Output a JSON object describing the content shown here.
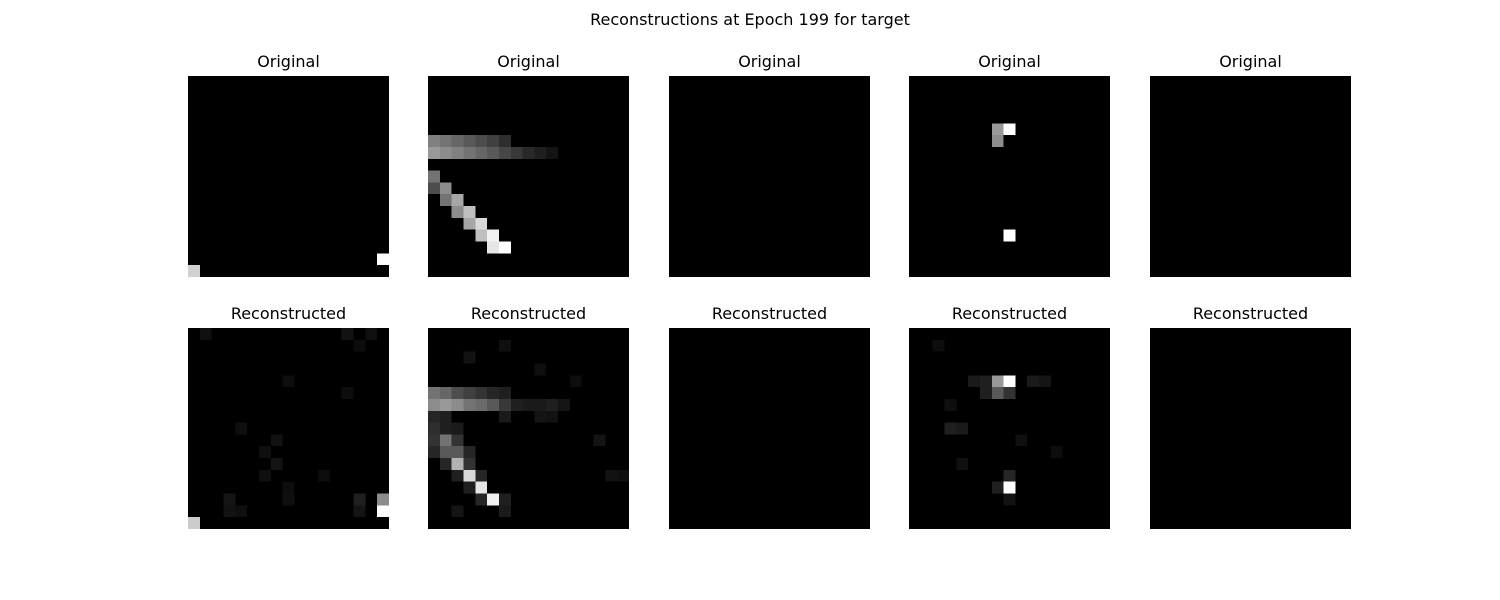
{
  "title": "Reconstructions at Epoch 199 for target",
  "colors": {
    "background": "#ffffff",
    "colormap": "gray"
  },
  "chart_data": {
    "type": "heatmap",
    "title": "Reconstructions at Epoch 199 for target",
    "grid_size": 17,
    "value_range": [
      0,
      1
    ],
    "colormap": "gray",
    "grid": false,
    "axes": "off",
    "rows": [
      {
        "row_title": "Original",
        "panels": [
          {
            "title": "Original",
            "cells": [
              [
                16,
                0,
                0.82
              ],
              [
                15,
                16,
                1.0
              ]
            ]
          },
          {
            "title": "Original",
            "cells": [
              [
                5,
                0,
                0.5
              ],
              [
                5,
                1,
                0.45
              ],
              [
                5,
                2,
                0.4
              ],
              [
                5,
                3,
                0.35
              ],
              [
                5,
                4,
                0.3
              ],
              [
                5,
                5,
                0.25
              ],
              [
                5,
                6,
                0.18
              ],
              [
                6,
                0,
                0.6
              ],
              [
                6,
                1,
                0.55
              ],
              [
                6,
                2,
                0.5
              ],
              [
                6,
                3,
                0.45
              ],
              [
                6,
                4,
                0.4
              ],
              [
                6,
                5,
                0.35
              ],
              [
                6,
                6,
                0.28
              ],
              [
                6,
                7,
                0.22
              ],
              [
                6,
                8,
                0.16
              ],
              [
                6,
                9,
                0.12
              ],
              [
                6,
                10,
                0.08
              ],
              [
                8,
                0,
                0.45
              ],
              [
                9,
                0,
                0.3
              ],
              [
                9,
                1,
                0.55
              ],
              [
                10,
                1,
                0.45
              ],
              [
                10,
                2,
                0.65
              ],
              [
                11,
                2,
                0.55
              ],
              [
                11,
                3,
                0.75
              ],
              [
                12,
                3,
                0.65
              ],
              [
                12,
                4,
                0.85
              ],
              [
                13,
                4,
                0.75
              ],
              [
                13,
                5,
                0.95
              ],
              [
                14,
                5,
                0.9
              ],
              [
                14,
                6,
                1.0
              ]
            ]
          },
          {
            "title": "Original",
            "cells": []
          },
          {
            "title": "Original",
            "cells": [
              [
                4,
                7,
                0.6
              ],
              [
                4,
                8,
                1.0
              ],
              [
                5,
                7,
                0.55
              ],
              [
                13,
                8,
                1.0
              ]
            ]
          },
          {
            "title": "Original",
            "cells": []
          }
        ]
      },
      {
        "row_title": "Reconstructed",
        "panels": [
          {
            "title": "Reconstructed",
            "cells": [
              [
                16,
                0,
                0.8
              ],
              [
                15,
                16,
                1.0
              ],
              [
                14,
                16,
                0.55
              ],
              [
                14,
                14,
                0.12
              ],
              [
                15,
                14,
                0.08
              ],
              [
                0,
                1,
                0.06
              ],
              [
                0,
                13,
                0.07
              ],
              [
                0,
                15,
                0.06
              ],
              [
                1,
                14,
                0.05
              ],
              [
                4,
                8,
                0.05
              ],
              [
                5,
                13,
                0.05
              ],
              [
                8,
                4,
                0.06
              ],
              [
                9,
                7,
                0.07
              ],
              [
                10,
                6,
                0.06
              ],
              [
                11,
                7,
                0.08
              ],
              [
                12,
                6,
                0.06
              ],
              [
                13,
                8,
                0.05
              ],
              [
                14,
                3,
                0.08
              ],
              [
                15,
                3,
                0.07
              ],
              [
                15,
                4,
                0.06
              ],
              [
                14,
                8,
                0.06
              ],
              [
                12,
                11,
                0.05
              ]
            ]
          },
          {
            "title": "Reconstructed",
            "cells": [
              [
                5,
                0,
                0.45
              ],
              [
                5,
                1,
                0.4
              ],
              [
                5,
                2,
                0.3
              ],
              [
                5,
                3,
                0.25
              ],
              [
                5,
                4,
                0.2
              ],
              [
                5,
                5,
                0.15
              ],
              [
                5,
                6,
                0.12
              ],
              [
                6,
                0,
                0.55
              ],
              [
                6,
                1,
                0.6
              ],
              [
                6,
                2,
                0.55
              ],
              [
                6,
                3,
                0.45
              ],
              [
                6,
                4,
                0.42
              ],
              [
                6,
                5,
                0.35
              ],
              [
                6,
                6,
                0.22
              ],
              [
                6,
                7,
                0.12
              ],
              [
                6,
                8,
                0.1
              ],
              [
                6,
                9,
                0.1
              ],
              [
                6,
                10,
                0.12
              ],
              [
                6,
                11,
                0.08
              ],
              [
                7,
                0,
                0.15
              ],
              [
                7,
                1,
                0.12
              ],
              [
                7,
                6,
                0.1
              ],
              [
                7,
                9,
                0.08
              ],
              [
                7,
                10,
                0.07
              ],
              [
                8,
                0,
                0.18
              ],
              [
                8,
                1,
                0.12
              ],
              [
                8,
                2,
                0.1
              ],
              [
                9,
                0,
                0.2
              ],
              [
                9,
                1,
                0.45
              ],
              [
                9,
                2,
                0.2
              ],
              [
                10,
                0,
                0.15
              ],
              [
                10,
                1,
                0.35
              ],
              [
                10,
                2,
                0.35
              ],
              [
                10,
                3,
                0.15
              ],
              [
                11,
                1,
                0.15
              ],
              [
                11,
                2,
                0.7
              ],
              [
                11,
                3,
                0.2
              ],
              [
                12,
                3,
                0.85
              ],
              [
                12,
                2,
                0.12
              ],
              [
                12,
                4,
                0.15
              ],
              [
                13,
                4,
                0.9
              ],
              [
                13,
                3,
                0.12
              ],
              [
                14,
                5,
                0.95
              ],
              [
                14,
                4,
                0.15
              ],
              [
                14,
                6,
                0.12
              ],
              [
                15,
                6,
                0.1
              ],
              [
                15,
                2,
                0.08
              ],
              [
                2,
                3,
                0.07
              ],
              [
                1,
                6,
                0.06
              ],
              [
                3,
                9,
                0.06
              ],
              [
                4,
                12,
                0.05
              ],
              [
                9,
                14,
                0.08
              ],
              [
                12,
                15,
                0.07
              ],
              [
                12,
                16,
                0.06
              ]
            ]
          },
          {
            "title": "Reconstructed",
            "cells": []
          },
          {
            "title": "Reconstructed",
            "cells": [
              [
                4,
                7,
                0.6
              ],
              [
                4,
                8,
                1.0
              ],
              [
                5,
                7,
                0.35
              ],
              [
                5,
                8,
                0.2
              ],
              [
                5,
                6,
                0.12
              ],
              [
                4,
                5,
                0.1
              ],
              [
                4,
                6,
                0.12
              ],
              [
                4,
                10,
                0.1
              ],
              [
                4,
                11,
                0.08
              ],
              [
                8,
                3,
                0.12
              ],
              [
                8,
                4,
                0.1
              ],
              [
                6,
                3,
                0.06
              ],
              [
                9,
                9,
                0.06
              ],
              [
                13,
                8,
                1.0
              ],
              [
                12,
                8,
                0.15
              ],
              [
                13,
                7,
                0.12
              ],
              [
                14,
                8,
                0.07
              ],
              [
                10,
                12,
                0.05
              ],
              [
                1,
                2,
                0.05
              ],
              [
                11,
                4,
                0.06
              ]
            ]
          },
          {
            "title": "Reconstructed",
            "cells": []
          }
        ]
      }
    ]
  }
}
